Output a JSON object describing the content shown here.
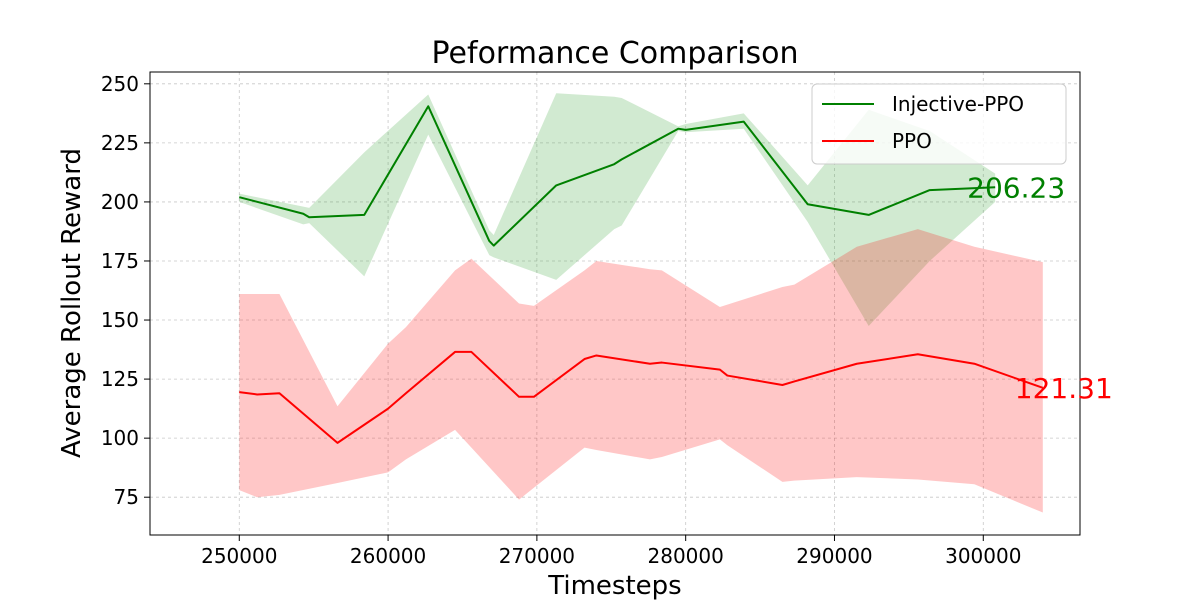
{
  "chart_data": {
    "type": "line",
    "title": "Peformance Comparison",
    "xlabel": "Timesteps",
    "ylabel": "Average Rollout Reward",
    "xlim": [
      244000,
      306500
    ],
    "ylim": [
      59,
      255
    ],
    "xticks": [
      250000,
      260000,
      270000,
      280000,
      290000,
      300000
    ],
    "yticks": [
      75,
      100,
      125,
      150,
      175,
      200,
      225,
      250
    ],
    "grid": true,
    "legend_position": "top-right",
    "series": [
      {
        "name": "Injective-PPO",
        "color": "#008000",
        "fill_color": "#2ca02c",
        "end_label": "206.23",
        "x": [
          250000,
          254300,
          254700,
          258400,
          262700,
          266800,
          267100,
          271300,
          275200,
          275700,
          279500,
          280000,
          283900,
          288200,
          292300,
          296400,
          300800
        ],
        "y": [
          202,
          195,
          193.5,
          194.5,
          240.5,
          183.5,
          181.5,
          207,
          216,
          218,
          231,
          230.5,
          234,
          199,
          194.5,
          205,
          206.2
        ],
        "lower": [
          200,
          190.5,
          191,
          168.5,
          228.5,
          177.5,
          176.5,
          167,
          188.5,
          190,
          230,
          229.5,
          231,
          191.5,
          147.5,
          175,
          200
        ],
        "upper": [
          203.5,
          198,
          197.5,
          221,
          245.5,
          188,
          186,
          246,
          244.5,
          244,
          232,
          233,
          237.5,
          207,
          239,
          230,
          212
        ]
      },
      {
        "name": "PPO",
        "color": "#ff0000",
        "fill_color": "#ff0000",
        "end_label": "121.31",
        "x": [
          250000,
          251200,
          252700,
          256600,
          260000,
          261200,
          264500,
          265600,
          268800,
          269800,
          273200,
          274000,
          277600,
          278400,
          282300,
          282800,
          286500,
          287300,
          291500,
          295600,
          299400,
          304000
        ],
        "y": [
          119.5,
          118.5,
          119,
          98,
          112.5,
          119,
          136.5,
          136.5,
          117.5,
          117.5,
          133.5,
          135,
          131.5,
          132,
          129,
          126.5,
          122.5,
          124,
          131.5,
          135.5,
          131.5,
          121.3
        ],
        "lower": [
          78,
          75,
          76,
          81,
          85.5,
          91,
          103.5,
          96,
          74,
          79,
          96,
          95,
          91,
          92,
          99.5,
          97,
          81.5,
          82,
          83.5,
          82.5,
          80.5,
          68.5
        ],
        "upper": [
          161,
          161,
          161,
          113.5,
          140,
          147,
          171,
          176,
          157,
          156,
          171,
          175,
          171.5,
          171,
          155.5,
          156.5,
          164,
          165,
          181,
          188.5,
          181,
          174.5
        ]
      }
    ]
  }
}
